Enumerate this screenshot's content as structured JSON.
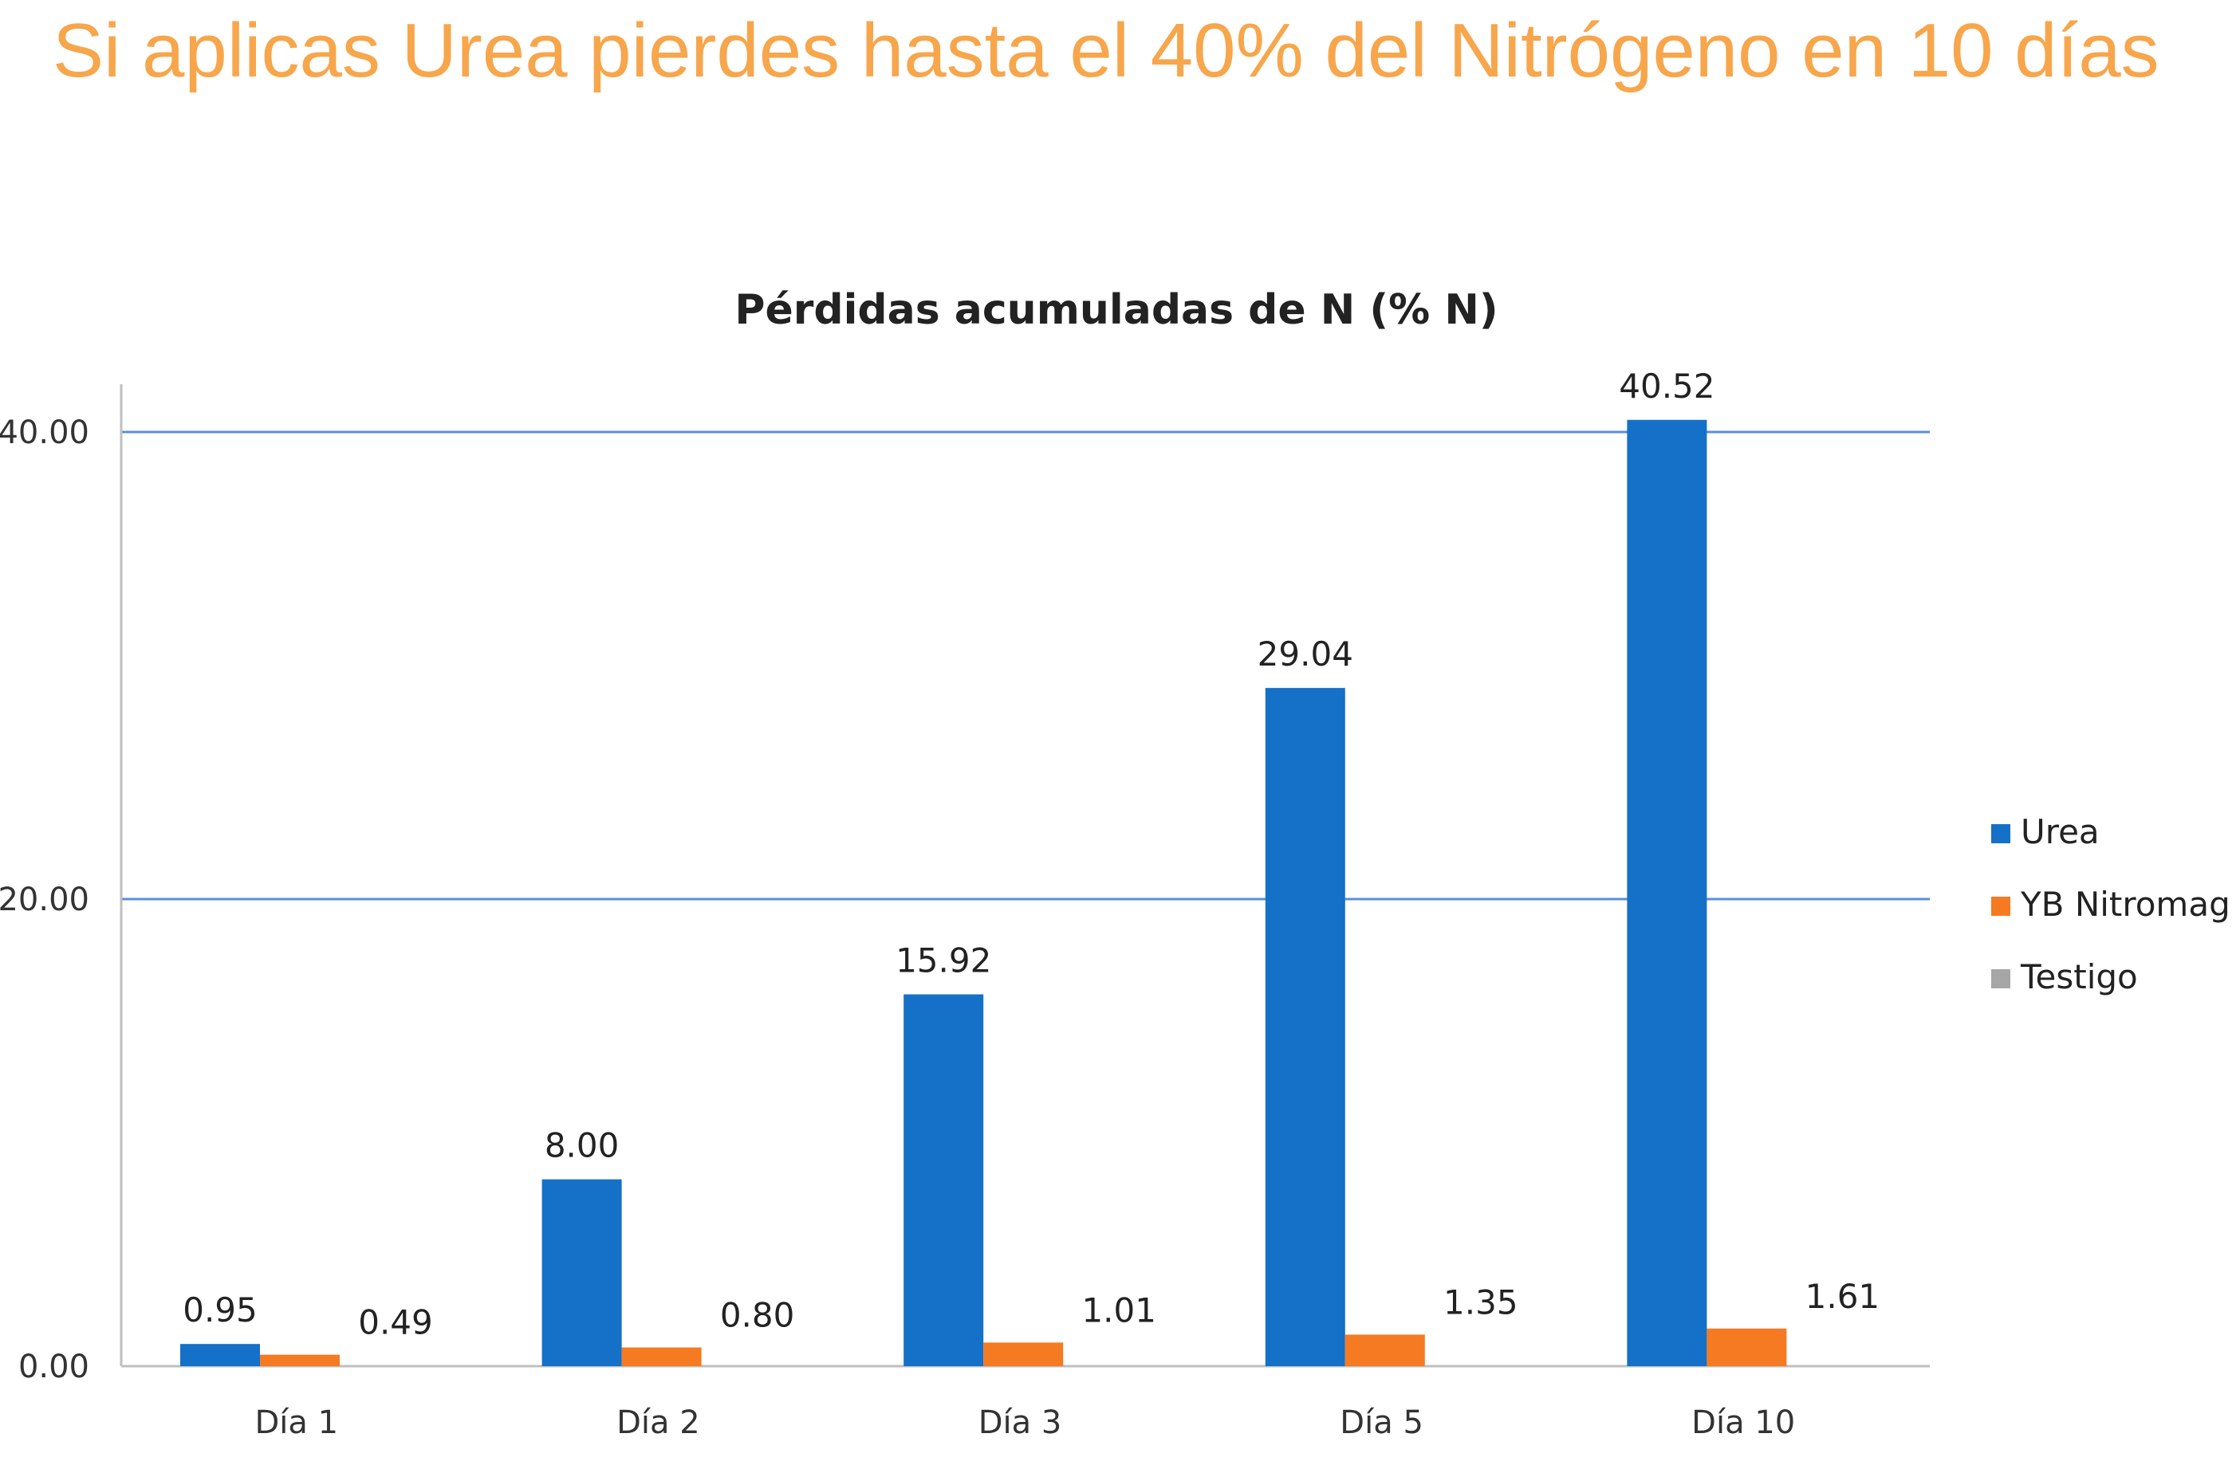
{
  "slide": {
    "title": "Si aplicas Urea pierdes hasta el 40% del Nitrógeno en 10 días"
  },
  "colors": {
    "title": "#f7a64b",
    "urea": "#1570c8",
    "nitromag": "#f57a21",
    "testigo": "#a6a6a6",
    "gridline": "#5b8fd9",
    "axis": "#bfbfbf"
  },
  "chart_data": {
    "type": "bar",
    "title": "Pérdidas acumuladas de N (% N)",
    "xlabel": "",
    "ylabel": "",
    "ylim": [
      0,
      40
    ],
    "yticks": [
      0,
      20,
      40
    ],
    "ytick_labels": [
      "0.00",
      "20.00",
      "40.00"
    ],
    "grid": true,
    "legend_position": "right",
    "categories": [
      "Día 1",
      "Día 2",
      "Día 3",
      "Día 5",
      "Día 10"
    ],
    "series": [
      {
        "name": "Urea",
        "values": [
          0.95,
          8.0,
          15.92,
          29.04,
          40.52
        ],
        "labels": [
          "0.95",
          "8.00",
          "15.92",
          "29.04",
          "40.52"
        ]
      },
      {
        "name": "YB Nitromag",
        "values": [
          0.49,
          0.8,
          1.01,
          1.35,
          1.61
        ],
        "labels": [
          "0.49",
          "0.80",
          "1.01",
          "1.35",
          "1.61"
        ]
      },
      {
        "name": "Testigo",
        "values": [
          0,
          0,
          0,
          0,
          0
        ],
        "labels": []
      }
    ]
  }
}
